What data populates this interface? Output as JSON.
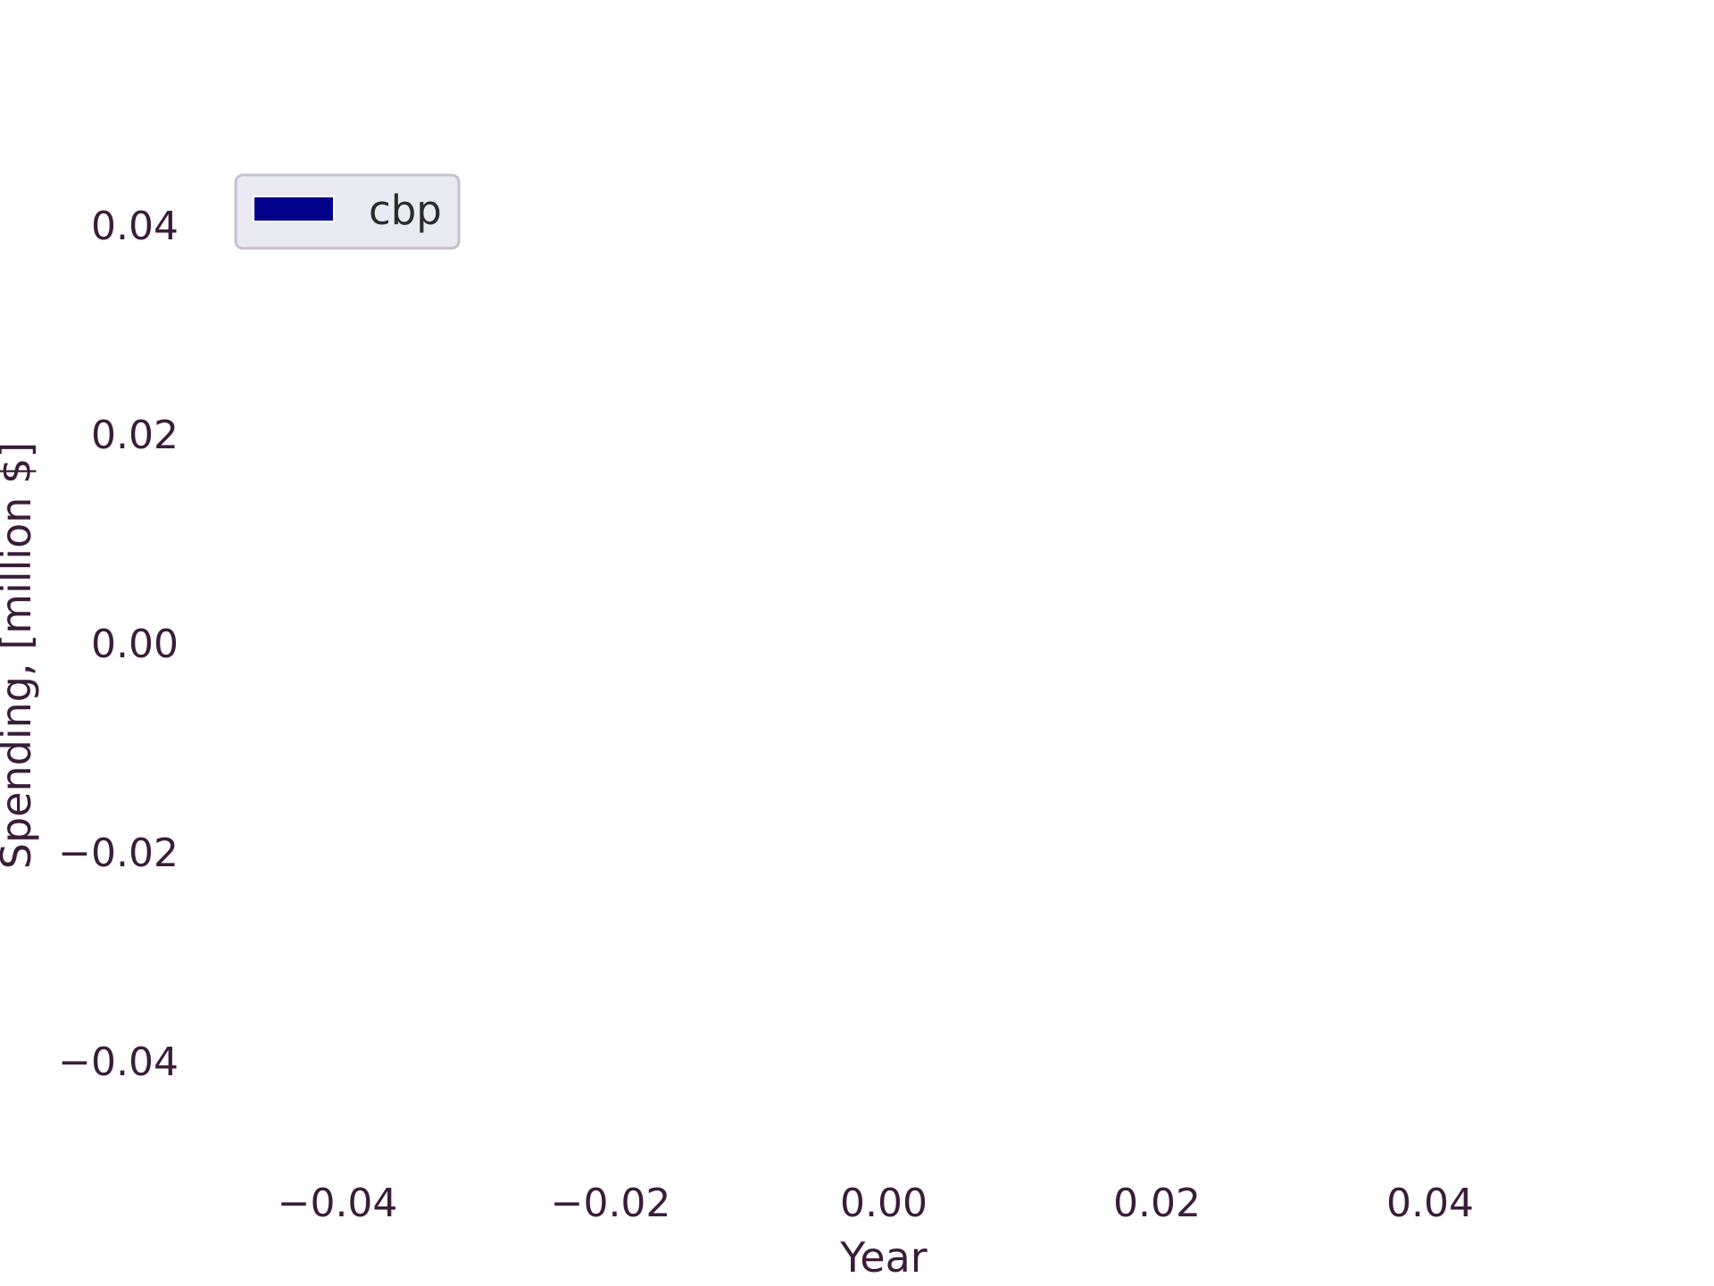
{
  "chart_data": {
    "type": "bar",
    "title": "",
    "xlabel": "Year",
    "ylabel": "Spending, [million $]",
    "xlim": [
      -0.05,
      0.05
    ],
    "ylim": [
      -0.05,
      0.05
    ],
    "x_ticks": [
      "−0.04",
      "−0.02",
      "0.00",
      "0.02",
      "0.04"
    ],
    "y_ticks": [
      "0.04",
      "0.02",
      "0.00",
      "−0.02",
      "−0.04"
    ],
    "x_tick_values": [
      -0.04,
      -0.02,
      0.0,
      0.02,
      0.04
    ],
    "y_tick_values": [
      0.04,
      0.02,
      0.0,
      -0.02,
      -0.04
    ],
    "categories": [],
    "series": [
      {
        "name": "cbp",
        "color": "#00008b",
        "values": []
      }
    ],
    "grid": false,
    "legend_placement": "upper-left"
  }
}
